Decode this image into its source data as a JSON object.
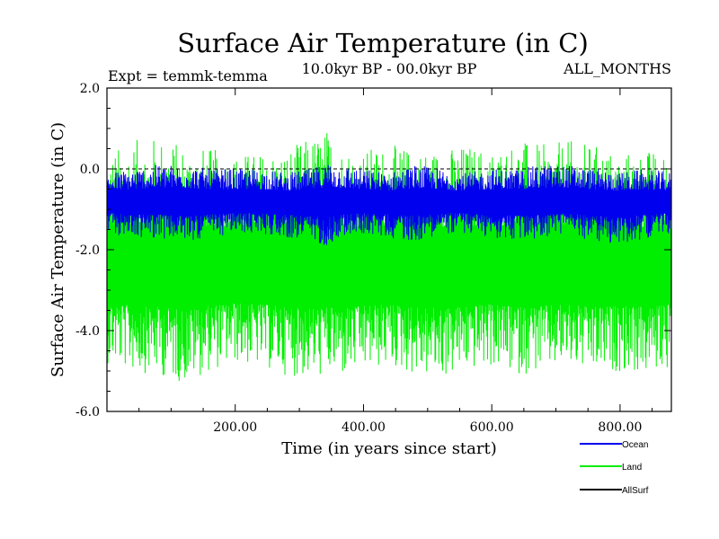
{
  "chart_data": {
    "type": "line",
    "title": "Surface Air Temperature (in C)",
    "subtitle": "10.0kyr BP - 00.0kyr BP",
    "expt_label": "Expt = temmk-temma",
    "months_label": "ALL_MONTHS",
    "xlabel": "Time (in years since start)",
    "ylabel": "Surface Air Temperature (in C)",
    "xlim": [
      0,
      880
    ],
    "ylim": [
      -6.0,
      2.0
    ],
    "x_ticks": [
      200,
      400,
      600,
      800
    ],
    "x_tick_labels": [
      "200.00",
      "400.00",
      "600.00",
      "800.00"
    ],
    "y_ticks": [
      2.0,
      0.0,
      -2.0,
      -4.0,
      -6.0
    ],
    "y_tick_labels": [
      "2.0",
      "0.0",
      "-2.0",
      "-4.0",
      "-6.0"
    ],
    "reference_line": 0.0,
    "series": [
      {
        "name": "Land",
        "color": "#00ee00",
        "mean": -2.5,
        "range": [
          -5.3,
          1.0
        ],
        "x_anchor": [
          0,
          40,
          80,
          120,
          160,
          200,
          240,
          280,
          320,
          345,
          360,
          400,
          440,
          480,
          520,
          560,
          600,
          640,
          680,
          720,
          760,
          800,
          840,
          880
        ],
        "upper_envelope": [
          0.4,
          0.7,
          0.8,
          0.6,
          0.5,
          0.4,
          0.4,
          0.5,
          0.8,
          1.0,
          0.6,
          0.5,
          0.6,
          0.5,
          0.5,
          0.6,
          0.5,
          0.7,
          0.6,
          0.7,
          0.6,
          0.4,
          0.5,
          0.3
        ],
        "lower_envelope": [
          -4.8,
          -5.0,
          -5.1,
          -5.3,
          -5.0,
          -4.8,
          -4.9,
          -5.1,
          -5.2,
          -5.1,
          -5.2,
          -5.0,
          -4.9,
          -5.1,
          -5.2,
          -5.0,
          -4.9,
          -5.1,
          -5.0,
          -4.9,
          -5.1,
          -5.0,
          -5.1,
          -4.9
        ]
      },
      {
        "name": "Ocean",
        "color": "#0000ee",
        "mean": -0.8,
        "range": [
          -1.9,
          0.2
        ],
        "x_anchor": [
          0,
          40,
          80,
          120,
          160,
          200,
          240,
          280,
          320,
          345,
          360,
          400,
          440,
          480,
          520,
          560,
          600,
          640,
          680,
          720,
          760,
          800,
          840,
          880
        ],
        "upper_envelope": [
          -0.1,
          0.0,
          0.1,
          0.1,
          0.0,
          0.0,
          0.0,
          -0.1,
          0.0,
          0.2,
          0.1,
          0.0,
          -0.1,
          0.1,
          0.0,
          -0.1,
          0.0,
          0.0,
          0.1,
          0.1,
          0.0,
          -0.1,
          0.0,
          -0.1
        ],
        "lower_envelope": [
          -1.6,
          -1.7,
          -1.7,
          -1.8,
          -1.7,
          -1.6,
          -1.6,
          -1.7,
          -1.8,
          -1.9,
          -1.7,
          -1.6,
          -1.7,
          -1.8,
          -1.6,
          -1.6,
          -1.7,
          -1.8,
          -1.7,
          -1.6,
          -1.8,
          -1.9,
          -1.7,
          -1.6
        ]
      },
      {
        "name": "AllSurf",
        "color": "#000000",
        "mean": -1.3,
        "range": [
          -2.0,
          -0.6
        ],
        "x_anchor": [
          0,
          880
        ],
        "upper_envelope": [
          -0.6,
          -0.6
        ],
        "lower_envelope": [
          -2.0,
          -2.0
        ]
      }
    ],
    "legend": {
      "position": "bottom-right",
      "entries": [
        "Ocean",
        "Land",
        "AllSurf"
      ]
    }
  }
}
